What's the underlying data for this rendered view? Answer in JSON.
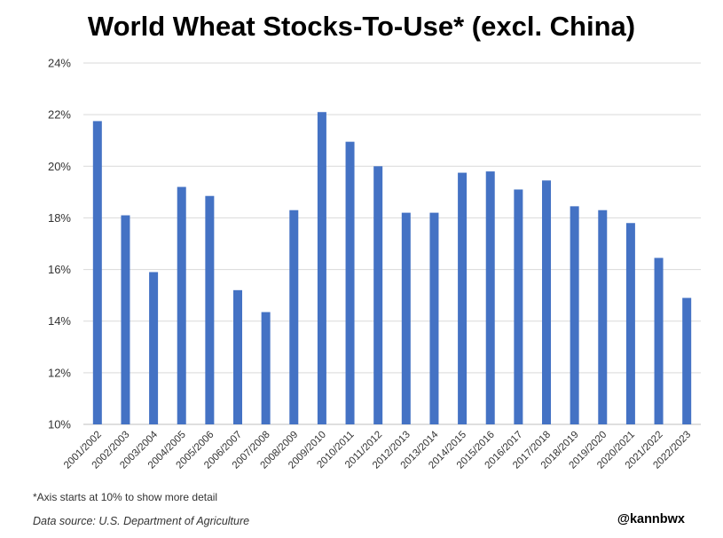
{
  "footnote": "*Axis starts at 10% to show more detail",
  "source": "Data source: U.S. Department of Agriculture",
  "handle": "@kannbwx",
  "colors": {
    "bar": "#4472c4",
    "grid": "#d9d9d9",
    "text": "#000000"
  },
  "chart_data": {
    "type": "bar",
    "title": "World Wheat Stocks-To-Use* (excl. China)",
    "xlabel": "",
    "ylabel": "",
    "ylim": [
      10,
      24
    ],
    "yticks": [
      "10%",
      "12%",
      "14%",
      "16%",
      "18%",
      "20%",
      "22%",
      "24%"
    ],
    "grid": true,
    "legend": "none",
    "categories": [
      "2001/2002",
      "2002/2003",
      "2003/2004",
      "2004/2005",
      "2005/2006",
      "2006/2007",
      "2007/2008",
      "2008/2009",
      "2009/2010",
      "2010/2011",
      "2011/2012",
      "2012/2013",
      "2013/2014",
      "2014/2015",
      "2015/2016",
      "2016/2017",
      "2017/2018",
      "2018/2019",
      "2019/2020",
      "2020/2021",
      "2021/2022",
      "2022/2023"
    ],
    "values": [
      21.75,
      18.1,
      15.9,
      19.2,
      18.85,
      15.2,
      14.35,
      18.3,
      22.1,
      20.95,
      20.0,
      18.2,
      18.2,
      19.75,
      19.8,
      19.1,
      19.45,
      18.45,
      18.3,
      17.8,
      16.45,
      14.9
    ]
  }
}
